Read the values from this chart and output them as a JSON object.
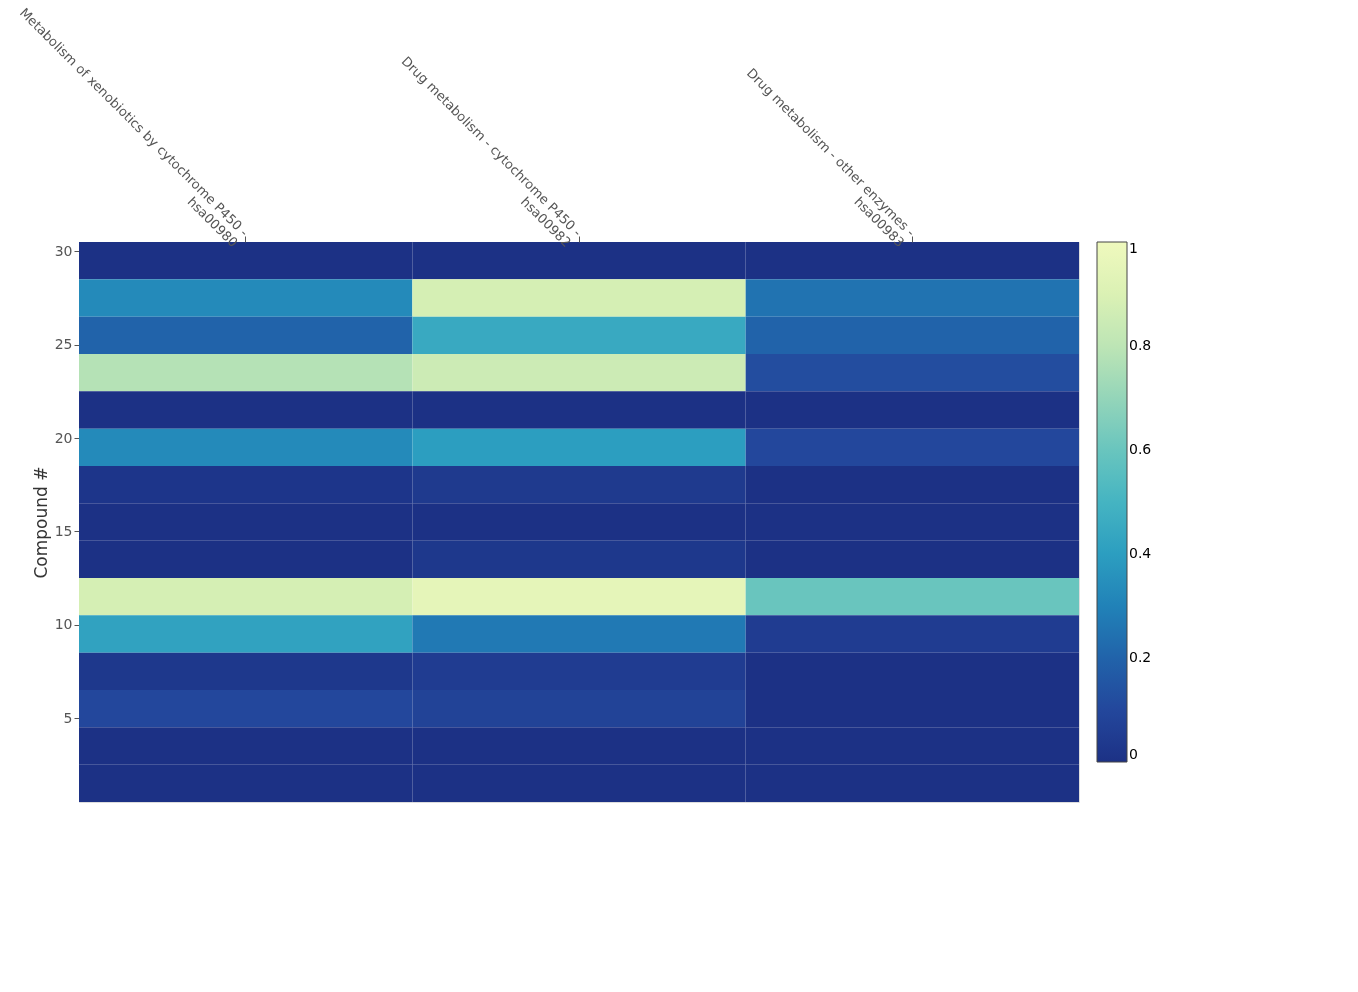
{
  "chart_data": {
    "type": "heatmap",
    "ylabel": "Compound #",
    "categories": [
      "Metabolism of xenobiotics by cytochrome P450 - hsa00980",
      "Drug metabolism - cytochrome P450 - hsa00982",
      "Drug metabolism - other enzymes - hsa00983"
    ],
    "cells": [
      [
        0,
        0,
        0
      ],
      [
        0.33,
        0.88,
        0.25
      ],
      [
        0.2,
        0.45,
        0.2
      ],
      [
        0.78,
        0.85,
        0.12
      ],
      [
        0,
        0,
        0
      ],
      [
        0.33,
        0.4,
        0.1
      ],
      [
        0.02,
        0.04,
        0
      ],
      [
        0,
        0,
        0
      ],
      [
        0,
        0.03,
        0
      ],
      [
        0.88,
        0.95,
        0.6
      ],
      [
        0.42,
        0.27,
        0.05
      ],
      [
        0.03,
        0.05,
        0
      ],
      [
        0.1,
        0.08,
        0
      ],
      [
        0,
        0,
        0
      ],
      [
        0,
        0,
        0
      ]
    ],
    "ylim": [
      0.5,
      30.5
    ],
    "yticks": [
      5,
      10,
      15,
      20,
      25,
      30
    ],
    "clim": [
      0,
      1
    ],
    "cticks": [
      0,
      0.2,
      0.4,
      0.6,
      0.8,
      1
    ],
    "grid": false
  }
}
